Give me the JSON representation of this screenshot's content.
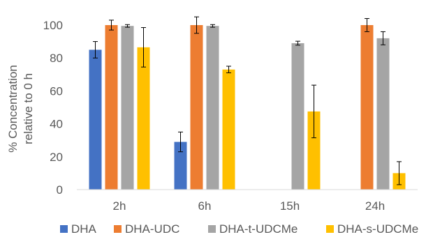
{
  "chart_data": {
    "type": "bar",
    "title": "",
    "xlabel": "",
    "ylabel": "% Concentration relative to 0 h",
    "ylabel_lines": [
      "% Concentration",
      "relative to 0 h"
    ],
    "ylim": [
      0,
      100
    ],
    "yticks": [
      0,
      20,
      40,
      60,
      80,
      100
    ],
    "ytick_labels": [
      "0",
      "20",
      "40",
      "60",
      "80",
      "100"
    ],
    "grid": false,
    "legend_position": "bottom",
    "categories": [
      "2h",
      "6h",
      "15h",
      "24h"
    ],
    "series": [
      {
        "name": "DHA",
        "color": "#4472C4",
        "values": [
          85,
          29,
          0,
          0
        ],
        "errors": [
          5,
          6,
          0,
          0
        ]
      },
      {
        "name": "DHA-UDC",
        "color": "#ED7D31",
        "values": [
          100,
          100,
          0,
          100
        ],
        "errors": [
          3,
          5,
          0,
          4
        ]
      },
      {
        "name": "DHA-t-UDCMe",
        "color": "#A5A5A5",
        "values": [
          99.5,
          99.5,
          89,
          92
        ],
        "errors": [
          0.8,
          0.8,
          1.2,
          4
        ]
      },
      {
        "name": "DHA-s-UDCMe",
        "color": "#FFC000",
        "values": [
          86.5,
          73,
          47.5,
          10
        ],
        "errors": [
          12,
          2,
          16,
          7
        ]
      }
    ]
  }
}
